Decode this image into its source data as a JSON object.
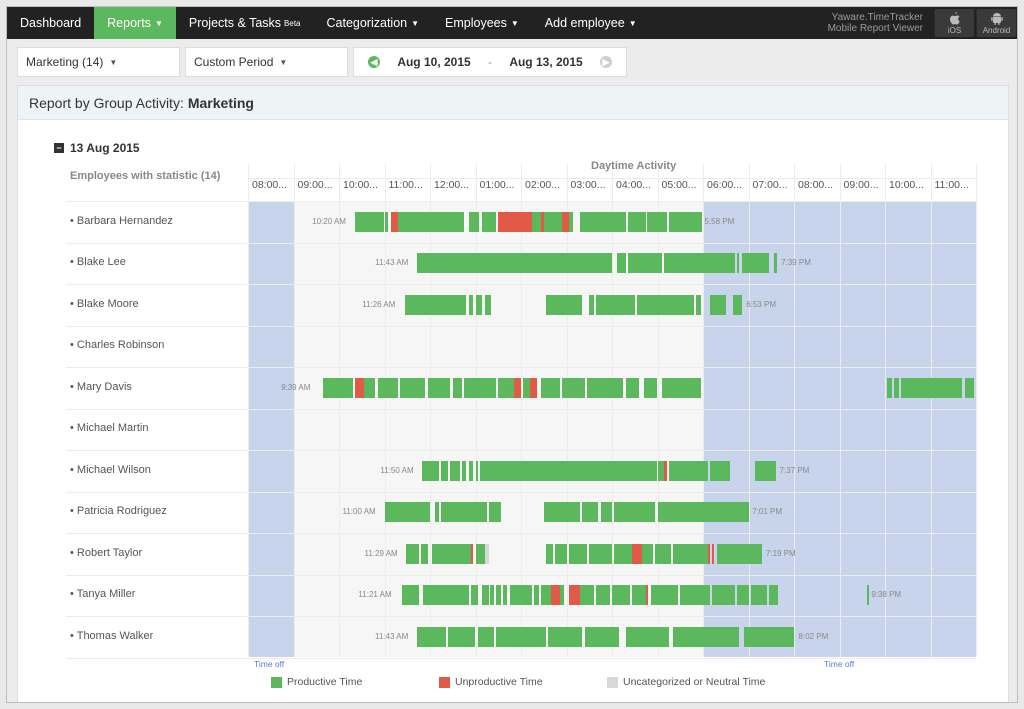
{
  "nav": {
    "items": [
      {
        "label": "Dashboard",
        "active": false,
        "caret": false
      },
      {
        "label": "Reports",
        "active": true,
        "caret": true
      },
      {
        "label": "Projects & Tasks",
        "sup": "Beta",
        "active": false,
        "caret": false
      },
      {
        "label": "Categorization",
        "active": false,
        "caret": true
      },
      {
        "label": "Employees",
        "active": false,
        "caret": true
      },
      {
        "label": "Add employee",
        "active": false,
        "caret": true
      }
    ],
    "mobile_line1": "Yaware.TimeTracker",
    "mobile_line2": "Mobile Report Viewer",
    "ios_label": "iOS",
    "android_label": "Android"
  },
  "filters": {
    "group": "Marketing (14)",
    "period": "Custom Period",
    "date_from": "Aug 10, 2015",
    "date_sep": "-",
    "date_to": "Aug 13, 2015"
  },
  "report": {
    "title_prefix": "Report by Group Activity:",
    "group_name": "Marketing",
    "date": "13 Aug 2015",
    "daytime_label": "Daytime Activity",
    "employees_header": "Employees with statistic (14)",
    "hours": [
      "08:00...",
      "09:00...",
      "10:00...",
      "11:00...",
      "12:00...",
      "01:00...",
      "02:00...",
      "03:00...",
      "04:00...",
      "05:00...",
      "06:00...",
      "07:00...",
      "08:00...",
      "09:00...",
      "10:00...",
      "11:00..."
    ],
    "time_off_label": "Time off"
  },
  "rows": [
    {
      "name": "Barbara Hernandez",
      "start": "10:20 AM",
      "end": "5:58 PM",
      "segments": [
        [
          10.35,
          10.68,
          "g"
        ],
        [
          10.68,
          10.85,
          "g"
        ],
        [
          10.85,
          11.0,
          "g"
        ],
        [
          11.0,
          11.08,
          "g"
        ],
        [
          11.15,
          11.3,
          "r"
        ],
        [
          11.3,
          11.5,
          "g"
        ],
        [
          11.5,
          11.85,
          "g"
        ],
        [
          11.85,
          12.3,
          "g"
        ],
        [
          12.3,
          12.55,
          "g"
        ],
        [
          12.55,
          12.75,
          "g"
        ],
        [
          12.85,
          13.08,
          "g"
        ],
        [
          13.15,
          13.3,
          "g"
        ],
        [
          13.3,
          13.45,
          "g"
        ],
        [
          13.5,
          14.25,
          "r"
        ],
        [
          14.25,
          14.45,
          "g"
        ],
        [
          14.45,
          14.5,
          "r"
        ],
        [
          14.5,
          14.9,
          "g"
        ],
        [
          14.9,
          15.05,
          "r"
        ],
        [
          15.05,
          15.15,
          "g"
        ],
        [
          15.3,
          15.65,
          "g"
        ],
        [
          15.65,
          15.95,
          "g"
        ],
        [
          15.95,
          16.3,
          "g"
        ],
        [
          16.35,
          16.75,
          "g"
        ],
        [
          16.78,
          16.95,
          "g"
        ],
        [
          16.95,
          17.2,
          "g"
        ],
        [
          17.25,
          17.97,
          "g"
        ]
      ]
    },
    {
      "name": "Blake Lee",
      "start": "11:43 AM",
      "end": "7:39 PM",
      "segments": [
        [
          11.72,
          16.0,
          "g"
        ],
        [
          16.1,
          16.3,
          "g"
        ],
        [
          16.35,
          17.1,
          "g"
        ],
        [
          17.15,
          18.7,
          "g"
        ],
        [
          18.75,
          18.8,
          "g"
        ],
        [
          18.85,
          19.45,
          "g"
        ],
        [
          19.55,
          19.62,
          "g"
        ]
      ]
    },
    {
      "name": "Blake Moore",
      "start": "11:26 AM",
      "end": "6:53 PM",
      "segments": [
        [
          11.45,
          11.75,
          "g"
        ],
        [
          11.75,
          12.8,
          "g"
        ],
        [
          12.85,
          12.95,
          "g"
        ],
        [
          13.0,
          13.15,
          "g"
        ],
        [
          13.2,
          13.35,
          "g"
        ],
        [
          14.55,
          15.35,
          "g"
        ],
        [
          15.5,
          15.6,
          "g"
        ],
        [
          15.65,
          16.5,
          "g"
        ],
        [
          16.55,
          17.8,
          "g"
        ],
        [
          17.85,
          17.95,
          "g"
        ],
        [
          18.15,
          18.5,
          "g"
        ],
        [
          18.65,
          18.85,
          "g"
        ]
      ]
    },
    {
      "name": "Charles Robinson",
      "start": "",
      "end": "",
      "segments": []
    },
    {
      "name": "Mary Davis",
      "start": "9:39 AM",
      "end": "",
      "segments": [
        [
          9.65,
          10.3,
          "g"
        ],
        [
          10.35,
          10.55,
          "r"
        ],
        [
          10.55,
          10.7,
          "g"
        ],
        [
          10.7,
          10.8,
          "g"
        ],
        [
          10.85,
          11.3,
          "g"
        ],
        [
          11.35,
          11.9,
          "g"
        ],
        [
          11.95,
          12.45,
          "g"
        ],
        [
          12.5,
          12.7,
          "g"
        ],
        [
          12.75,
          13.45,
          "g"
        ],
        [
          13.5,
          13.85,
          "g"
        ],
        [
          13.85,
          14.0,
          "r"
        ],
        [
          14.05,
          14.2,
          "g"
        ],
        [
          14.2,
          14.35,
          "r"
        ],
        [
          14.45,
          14.85,
          "g"
        ],
        [
          14.9,
          15.4,
          "g"
        ],
        [
          15.45,
          16.25,
          "g"
        ],
        [
          16.3,
          16.6,
          "g"
        ],
        [
          16.7,
          17.0,
          "g"
        ],
        [
          17.1,
          17.95,
          "g"
        ],
        [
          22.05,
          22.15,
          "g"
        ],
        [
          22.2,
          22.3,
          "g"
        ],
        [
          22.35,
          23.7,
          "g"
        ],
        [
          23.75,
          23.95,
          "g"
        ]
      ]
    },
    {
      "name": "Michael Martin",
      "start": "",
      "end": "",
      "segments": []
    },
    {
      "name": "Michael Wilson",
      "start": "11:50 AM",
      "end": "7:37 PM",
      "segments": [
        [
          11.83,
          12.2,
          "g"
        ],
        [
          12.25,
          12.4,
          "g"
        ],
        [
          12.45,
          12.65,
          "g"
        ],
        [
          12.7,
          12.8,
          "g"
        ],
        [
          12.85,
          12.95,
          "g"
        ],
        [
          13.0,
          13.05,
          "g"
        ],
        [
          13.1,
          17.0,
          "g"
        ],
        [
          17.0,
          17.15,
          "g"
        ],
        [
          17.15,
          17.2,
          "r"
        ],
        [
          17.25,
          17.35,
          "g"
        ],
        [
          17.35,
          18.1,
          "g"
        ],
        [
          18.15,
          18.6,
          "g"
        ],
        [
          19.15,
          19.6,
          "g"
        ]
      ]
    },
    {
      "name": "Patricia Rodriguez",
      "start": "11:00 AM",
      "end": "7:01 PM",
      "segments": [
        [
          11.0,
          12.0,
          "g"
        ],
        [
          12.1,
          12.2,
          "g"
        ],
        [
          12.25,
          13.25,
          "g"
        ],
        [
          13.3,
          13.55,
          "g"
        ],
        [
          14.5,
          15.3,
          "g"
        ],
        [
          15.35,
          15.7,
          "g"
        ],
        [
          15.75,
          16.0,
          "g"
        ],
        [
          16.05,
          16.95,
          "g"
        ],
        [
          17.0,
          18.0,
          "g"
        ],
        [
          18.0,
          19.02,
          "g"
        ]
      ]
    },
    {
      "name": "Robert Taylor",
      "start": "11:29 AM",
      "end": "7:19 PM",
      "segments": [
        [
          11.48,
          11.75,
          "g"
        ],
        [
          11.8,
          11.95,
          "g"
        ],
        [
          12.05,
          12.9,
          "g"
        ],
        [
          12.9,
          12.95,
          "r"
        ],
        [
          13.0,
          13.2,
          "g"
        ],
        [
          13.2,
          13.3,
          "gray"
        ],
        [
          14.55,
          14.7,
          "g"
        ],
        [
          14.75,
          15.0,
          "g"
        ],
        [
          15.05,
          15.45,
          "g"
        ],
        [
          15.5,
          16.0,
          "g"
        ],
        [
          16.05,
          16.45,
          "g"
        ],
        [
          16.45,
          16.55,
          "r"
        ],
        [
          16.55,
          16.65,
          "r"
        ],
        [
          16.65,
          16.9,
          "g"
        ],
        [
          16.95,
          17.3,
          "g"
        ],
        [
          17.35,
          18.0,
          "g"
        ],
        [
          18.0,
          18.1,
          "g"
        ],
        [
          18.1,
          18.15,
          "r"
        ],
        [
          18.2,
          18.25,
          "r"
        ],
        [
          18.3,
          19.3,
          "g"
        ]
      ]
    },
    {
      "name": "Tanya Miller",
      "start": "11:21 AM",
      "end": "9:38 PM",
      "segments": [
        [
          11.38,
          11.75,
          "g"
        ],
        [
          11.85,
          12.85,
          "g"
        ],
        [
          12.9,
          13.05,
          "g"
        ],
        [
          13.15,
          13.3,
          "g"
        ],
        [
          13.32,
          13.4,
          "g"
        ],
        [
          13.45,
          13.55,
          "g"
        ],
        [
          13.6,
          13.7,
          "g"
        ],
        [
          13.75,
          14.25,
          "g"
        ],
        [
          14.28,
          14.4,
          "g"
        ],
        [
          14.45,
          14.65,
          "g"
        ],
        [
          14.65,
          14.85,
          "r"
        ],
        [
          14.85,
          14.95,
          "g"
        ],
        [
          15.05,
          15.3,
          "r"
        ],
        [
          15.3,
          15.6,
          "g"
        ],
        [
          15.65,
          15.95,
          "g"
        ],
        [
          16.0,
          16.4,
          "g"
        ],
        [
          16.45,
          16.75,
          "g"
        ],
        [
          16.75,
          16.8,
          "r"
        ],
        [
          16.85,
          17.45,
          "g"
        ],
        [
          17.5,
          18.15,
          "g"
        ],
        [
          18.2,
          18.7,
          "g"
        ],
        [
          18.75,
          19.0,
          "g"
        ],
        [
          19.05,
          19.4,
          "g"
        ],
        [
          19.45,
          19.65,
          "g"
        ],
        [
          21.6,
          21.65,
          "g"
        ]
      ]
    },
    {
      "name": "Thomas Walker",
      "start": "11:43 AM",
      "end": "8:02 PM",
      "segments": [
        [
          11.72,
          12.35,
          "g"
        ],
        [
          12.4,
          13.0,
          "g"
        ],
        [
          13.05,
          13.4,
          "g"
        ],
        [
          13.45,
          14.55,
          "g"
        ],
        [
          14.6,
          15.35,
          "g"
        ],
        [
          15.4,
          16.15,
          "g"
        ],
        [
          16.3,
          17.25,
          "g"
        ],
        [
          17.35,
          18.8,
          "g"
        ],
        [
          18.9,
          20.0,
          "g"
        ]
      ]
    }
  ],
  "legend": {
    "productive": "Productive Time",
    "unproductive": "Unproductive Time",
    "neutral": "Uncategorized or Neutral Time"
  },
  "colors": {
    "productive": "#5cb85c",
    "unproductive": "#e15a47",
    "neutral": "#d8d8d8",
    "time_off": "#c8d4ec",
    "nav_active": "#5cb85c"
  }
}
